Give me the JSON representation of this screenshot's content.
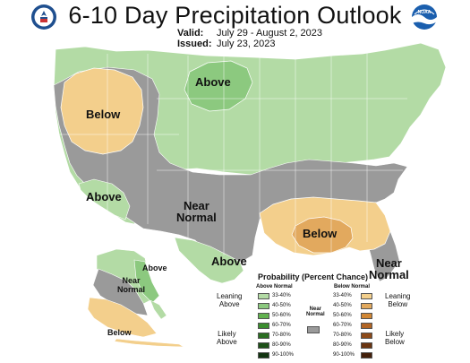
{
  "header": {
    "title": "6-10 Day Precipitation Outlook",
    "valid_key": "Valid:",
    "valid_value": "July 29 - August 2, 2023",
    "issued_key": "Issued:",
    "issued_value": "July 23, 2023"
  },
  "logos": {
    "left": "department-of-commerce-seal",
    "right": "noaa-logo",
    "right_text": "NOAA"
  },
  "colors": {
    "above_33_40": "#b3dba5",
    "above_40_50": "#8cc97f",
    "above_50_60": "#62b24f",
    "above_60_70": "#3b8d2e",
    "above_70_80": "#2a6d21",
    "above_80_90": "#1d5017",
    "above_90_100": "#123410",
    "below_33_40": "#f3cf8c",
    "below_40_50": "#e2a95e",
    "below_50_60": "#d18735",
    "below_60_70": "#b26524",
    "below_70_80": "#8d4a19",
    "below_80_90": "#6a3410",
    "below_90_100": "#44200a",
    "near_normal": "#9a9a9a"
  },
  "map_labels": {
    "above_north": "Above",
    "below_west": "Below",
    "above_southwest": "Above",
    "near_normal": "Near\nNormal",
    "below_southeast": "Below",
    "above_texas": "Above",
    "near_normal_florida": "Near\nNormal",
    "alaska_above": "Above",
    "alaska_near_normal": "Near\nNormal",
    "alaska_below": "Below"
  },
  "legend": {
    "title": "Probability (Percent Chance)",
    "above_header": "Above Normal",
    "below_header": "Below Normal",
    "near_normal_header": "Near\nNormal",
    "leaning_above": "Leaning\nAbove",
    "likely_above": "Likely\nAbove",
    "leaning_below": "Leaning\nBelow",
    "likely_below": "Likely\nBelow",
    "ranges": [
      "33-40%",
      "40-50%",
      "50-60%",
      "60-70%",
      "70-80%",
      "80-90%",
      "90-100%"
    ]
  }
}
